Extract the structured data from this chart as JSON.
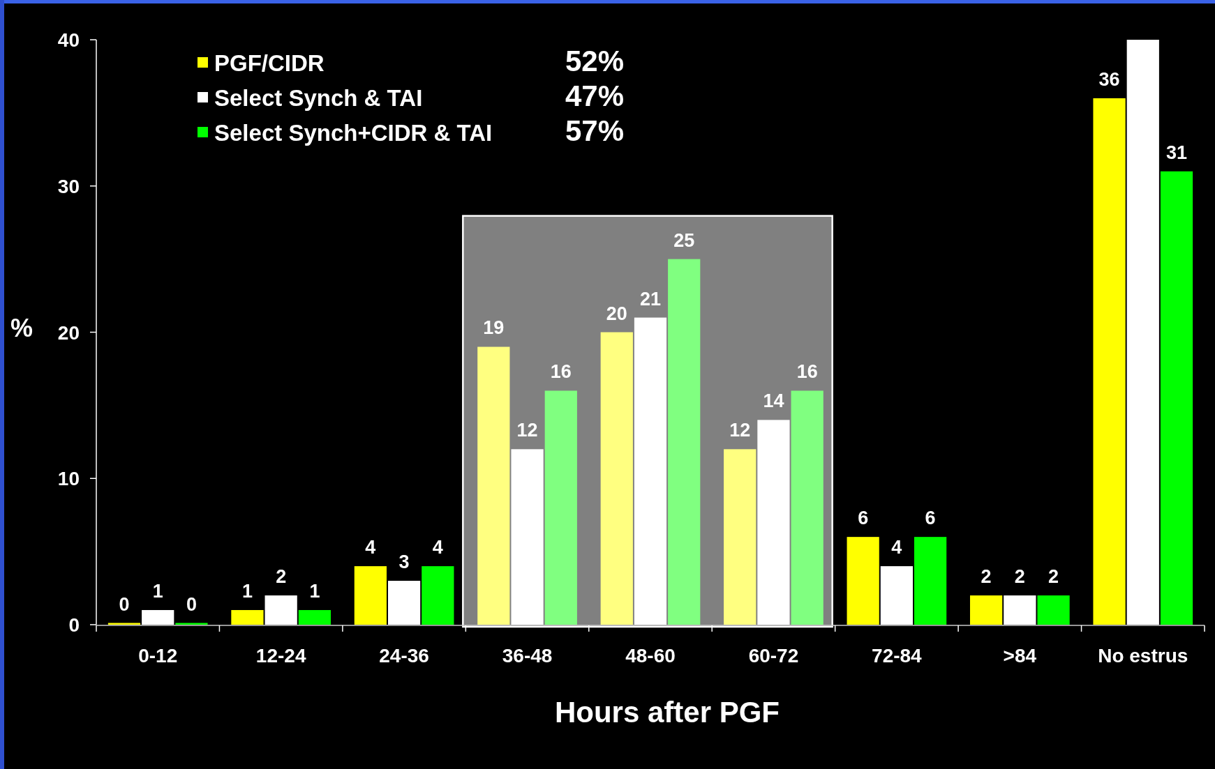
{
  "chart_data": {
    "type": "bar",
    "xlabel": "Hours after PGF",
    "ylabel": "%",
    "categories": [
      "0-12",
      "12-24",
      "24-36",
      "36-48",
      "48-60",
      "60-72",
      "72-84",
      ">84",
      "No estrus"
    ],
    "series": [
      {
        "name": "PGF/CIDR",
        "color": "#ffff00",
        "colors": [
          "#ffff00",
          "#ffff00",
          "#ffff00",
          "#ffff80",
          "#ffff80",
          "#ffff80",
          "#ffff00",
          "#ffff00",
          "#ffff00"
        ],
        "values": [
          0,
          1,
          4,
          19,
          20,
          12,
          6,
          2,
          36
        ],
        "value_labels": [
          "0",
          "1",
          "4",
          "19",
          "20",
          "12",
          "6",
          "2",
          "36"
        ]
      },
      {
        "name": "Select Synch & TAI",
        "color": "#ffffff",
        "values": [
          1,
          2,
          3,
          12,
          21,
          14,
          4,
          2,
          40
        ],
        "value_labels": [
          "1",
          "2",
          "3",
          "12",
          "21",
          "14",
          "4",
          "2",
          null
        ]
      },
      {
        "name": "Select Synch+CIDR & TAI",
        "color": "#00ff00",
        "colors": [
          "#00ff00",
          "#00ff00",
          "#00ff00",
          "#80ff80",
          "#80ff80",
          "#80ff80",
          "#00ff00",
          "#00ff00",
          "#00ff00"
        ],
        "values": [
          0,
          1,
          4,
          16,
          25,
          16,
          6,
          2,
          31
        ],
        "value_labels": [
          "0",
          "1",
          "4",
          "16",
          "25",
          "16",
          "6",
          "2",
          "31"
        ]
      }
    ],
    "ylim": [
      0,
      40
    ],
    "yticks": [
      0,
      10,
      20,
      30,
      40
    ],
    "bands": [
      {
        "axis": "x",
        "from": "36-48",
        "to": "60-72",
        "color": "#808080"
      }
    ],
    "annotations": [
      "52%",
      "47%",
      "57%"
    ],
    "legend": "top left"
  }
}
